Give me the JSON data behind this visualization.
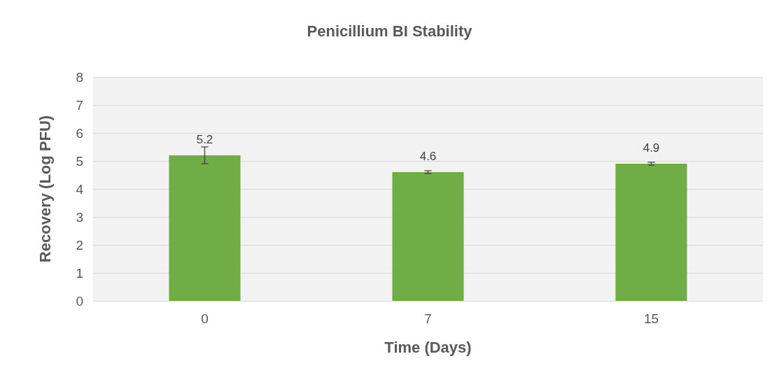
{
  "chart_data": {
    "type": "bar",
    "title": "Penicillium BI Stability",
    "xlabel": "Time (Days)",
    "ylabel": "Recovery (Log PFU)",
    "categories": [
      "0",
      "7",
      "15"
    ],
    "values": [
      5.2,
      4.6,
      4.9
    ],
    "errors": [
      0.3,
      0.05,
      0.05
    ],
    "color": "#70ad47",
    "ylim": [
      0,
      8
    ],
    "yticks": [
      0,
      1,
      2,
      3,
      4,
      5,
      6,
      7,
      8
    ],
    "grid": "y",
    "data_labels": true
  }
}
